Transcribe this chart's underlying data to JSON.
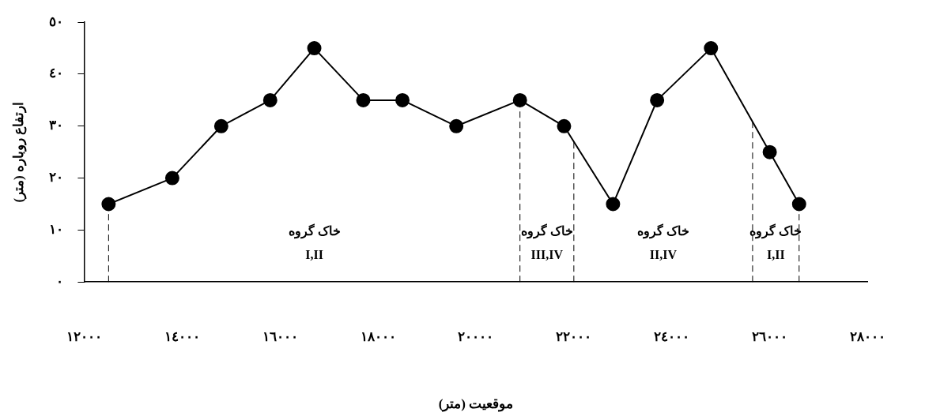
{
  "chart_data": {
    "type": "line",
    "xlabel": "موقعیت (متر)",
    "ylabel": "ارتفاع روباره (متر)",
    "x": [
      12500,
      13800,
      14800,
      15800,
      16700,
      17700,
      18500,
      19600,
      20900,
      21800,
      22800,
      23700,
      24800,
      26000,
      26600
    ],
    "series": [
      {
        "color": "#000000",
        "values": [
          15,
          20,
          30,
          35,
          45,
          35,
          35,
          30,
          35,
          30,
          15,
          35,
          45,
          25,
          15
        ]
      }
    ],
    "xlim": [
      12000,
      28000
    ],
    "xticks": [
      {
        "value": 12000,
        "label": "١٢٠٠٠"
      },
      {
        "value": 14000,
        "label": "١٤٠٠٠"
      },
      {
        "value": 16000,
        "label": "١٦٠٠٠"
      },
      {
        "value": 18000,
        "label": "١٨٠٠٠"
      },
      {
        "value": 20000,
        "label": "٢٠٠٠٠"
      },
      {
        "value": 22000,
        "label": "٢٢٠٠٠"
      },
      {
        "value": 24000,
        "label": "٢٤٠٠٠"
      },
      {
        "value": 26000,
        "label": "٢٦٠٠٠"
      },
      {
        "value": 28000,
        "label": "٢٨٠٠٠"
      }
    ],
    "ylim": [
      0,
      50
    ],
    "yticks": [
      {
        "value": 0,
        "label": "٠"
      },
      {
        "value": 10,
        "label": "١٠"
      },
      {
        "value": 20,
        "label": "٢٠"
      },
      {
        "value": 30,
        "label": "٣٠"
      },
      {
        "value": 40,
        "label": "٤٠"
      },
      {
        "value": 50,
        "label": "٥٠"
      }
    ],
    "ref_lines": [
      {
        "axis": "x",
        "value": 12500,
        "color": "#000000",
        "line_style": "dashed"
      },
      {
        "axis": "x",
        "value": 20900,
        "color": "#000000",
        "line_style": "dashed"
      },
      {
        "axis": "x",
        "value": 22000,
        "color": "#000000",
        "line_style": "dashed"
      },
      {
        "axis": "x",
        "value": 25650,
        "color": "#000000",
        "line_style": "dashed"
      },
      {
        "axis": "x",
        "value": 26600,
        "color": "#000000",
        "line_style": "dashed"
      }
    ],
    "annotations": [
      "خاک گروه\nI,II",
      "خاک گروه\nIII,IV",
      "خاک گروه\nII,IV",
      "خاک گروه\nI,II"
    ],
    "grid": false,
    "legend": false,
    "marker": "circle",
    "line_style": "solid"
  }
}
